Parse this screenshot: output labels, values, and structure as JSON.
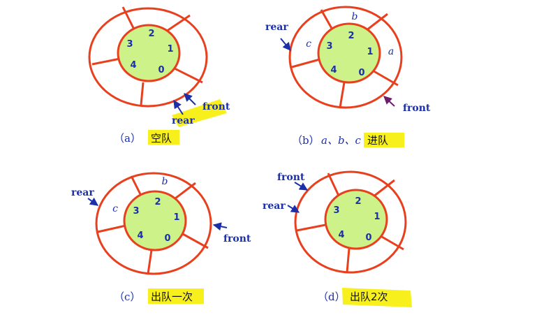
{
  "panels": [
    {
      "id": "a",
      "caption_prefix": "（a）",
      "caption_text": "空队",
      "slots": {
        "a": "",
        "b": "",
        "c": ""
      },
      "indices": [
        "0",
        "1",
        "2",
        "3",
        "4"
      ],
      "pointers": {
        "rear": "rear",
        "front": "front"
      }
    },
    {
      "id": "b",
      "caption_prefix": "（b）",
      "caption_items": "a、b、c",
      "caption_text": "进队",
      "slots": {
        "a": "a",
        "b": "b",
        "c": "c"
      },
      "indices": [
        "0",
        "1",
        "2",
        "3",
        "4"
      ],
      "pointers": {
        "rear": "rear",
        "front": "front"
      }
    },
    {
      "id": "c",
      "caption_prefix": "（c）",
      "caption_text": "出队一次",
      "slots": {
        "a": "",
        "b": "b",
        "c": "c"
      },
      "indices": [
        "0",
        "1",
        "2",
        "3",
        "4"
      ],
      "pointers": {
        "rear": "rear",
        "front": "front"
      }
    },
    {
      "id": "d",
      "caption_prefix": "（d）",
      "caption_text": "出队2次",
      "slots": {
        "a": "",
        "b": "",
        "c": ""
      },
      "indices": [
        "0",
        "1",
        "2",
        "3",
        "4"
      ],
      "pointers": {
        "rear": "rear",
        "front": "front"
      }
    }
  ],
  "colors": {
    "ring": "#e8401e",
    "hub": "#cdf28a",
    "text": "#1a2fa8",
    "highlight": "#f7f01c",
    "arrow_alt": "#6b1f6b"
  }
}
